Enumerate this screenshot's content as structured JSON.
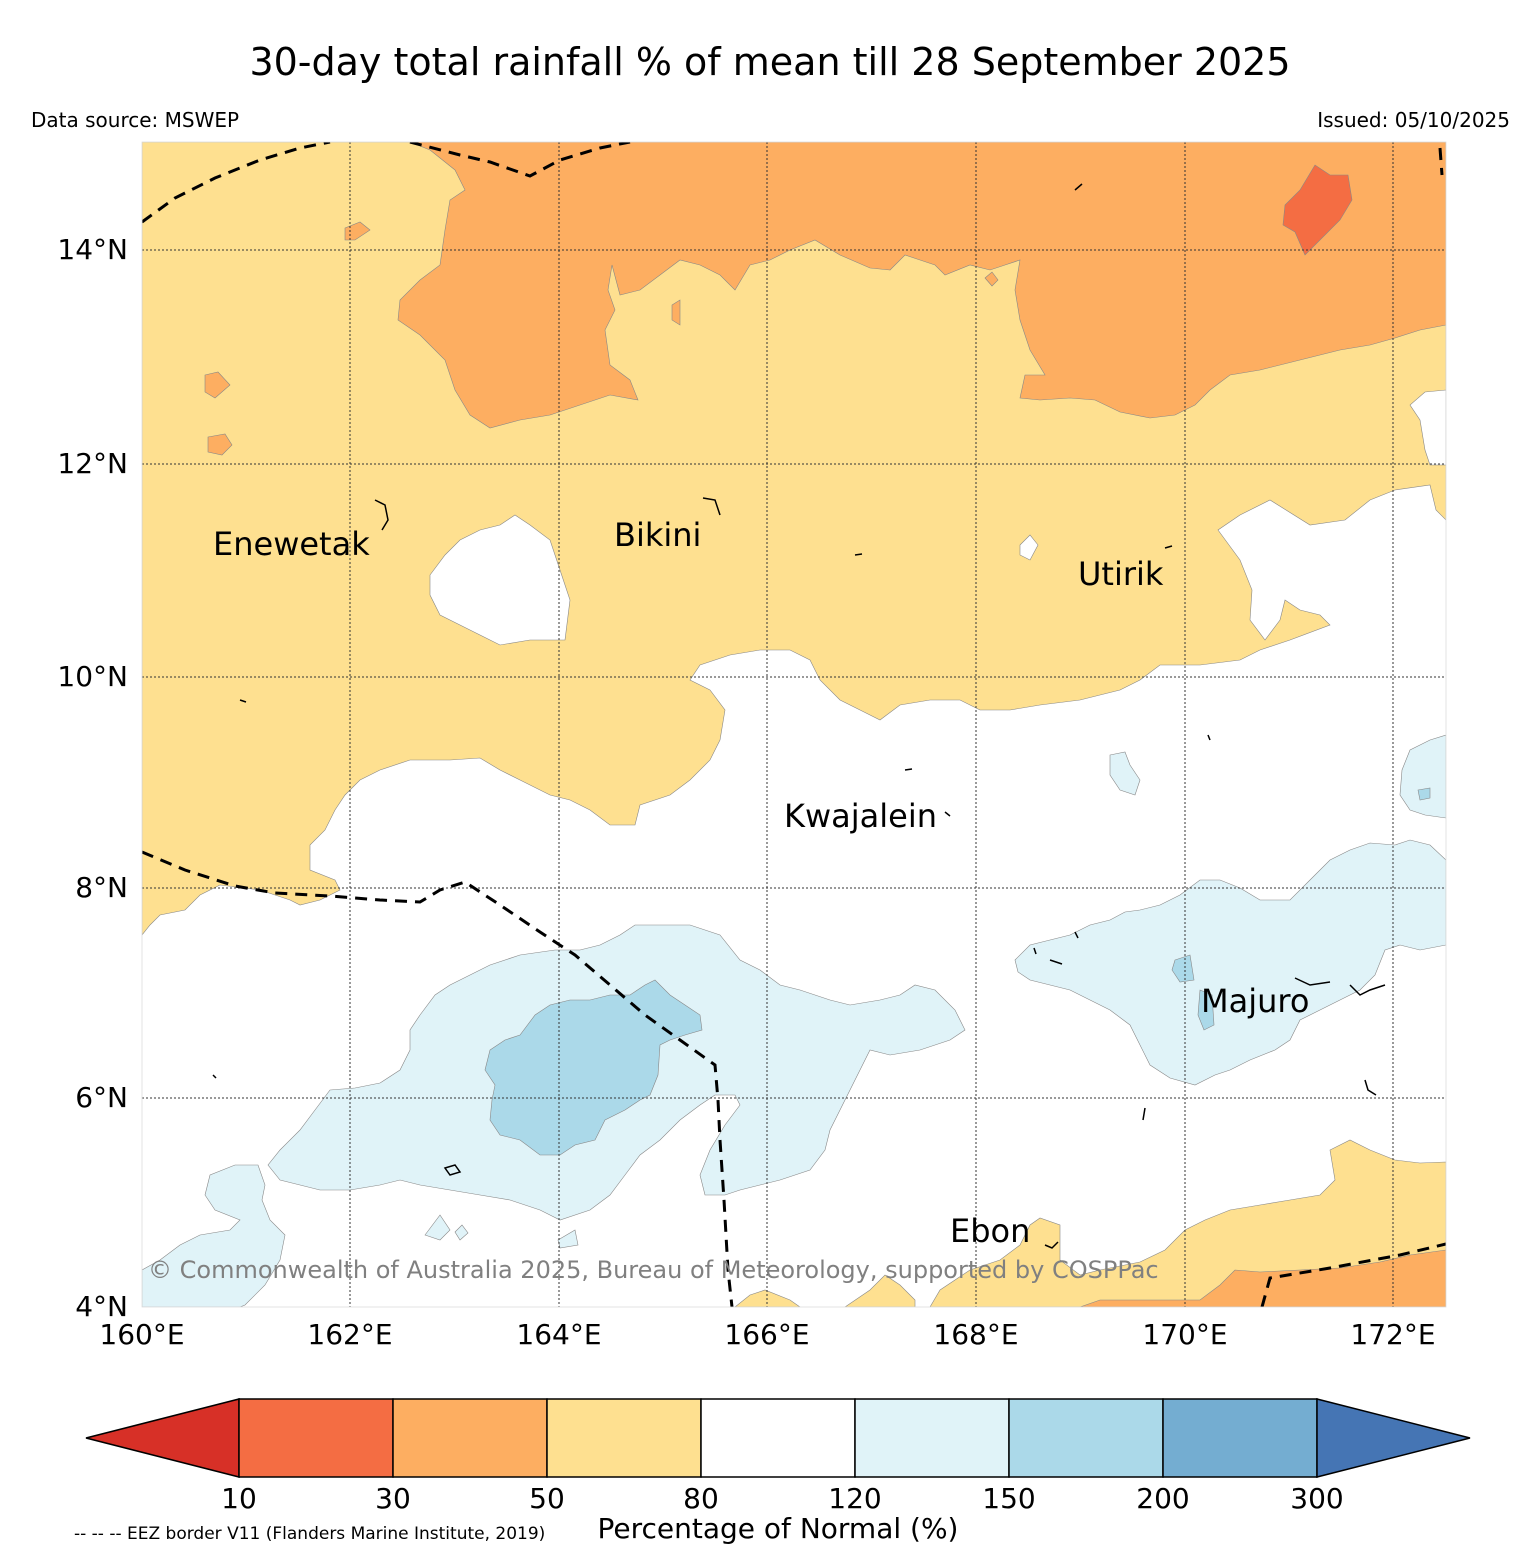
{
  "title": "30-day total rainfall % of mean till 28 September 2025",
  "data_source": "Data source: MSWEP",
  "issued": "Issued: 05/10/2025",
  "map": {
    "lat_ticks": [
      "14°N",
      "12°N",
      "10°N",
      "8°N",
      "6°N",
      "4°N"
    ],
    "lon_ticks": [
      "160°E",
      "162°E",
      "164°E",
      "166°E",
      "168°E",
      "170°E",
      "172°E"
    ],
    "places": [
      "Enewetak",
      "Bikini",
      "Utirik",
      "Kwajalein",
      "Majuro",
      "Ebon"
    ],
    "copyright": "© Commonwealth of Australia 2025, Bureau of Meteorology, supported by COSPPac"
  },
  "colorbar": {
    "labels": [
      "10",
      "30",
      "50",
      "80",
      "120",
      "150",
      "200",
      "300"
    ],
    "colors": [
      "#d73027",
      "#f46d43",
      "#fdae61",
      "#fee090",
      "#ffffff",
      "#e0f3f8",
      "#abd9e9",
      "#74add1",
      "#4575b4"
    ],
    "title": "Percentage of Normal (%)"
  },
  "footnote": "-- -- -- EEZ border V11 (Flanders Marine Institute, 2019)"
}
